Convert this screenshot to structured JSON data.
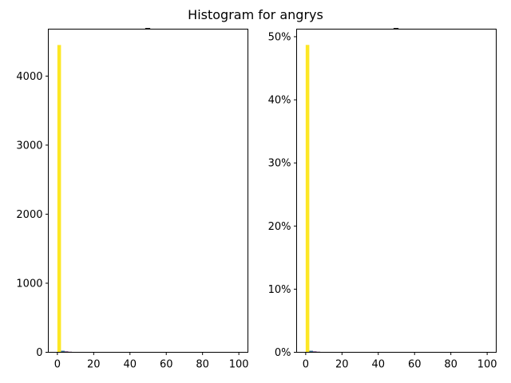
{
  "figure": {
    "suptitle": "Histogram for angrys"
  },
  "chart_data": [
    {
      "type": "bar",
      "title": "_",
      "xlabel": "",
      "ylabel": "",
      "xlim": [
        -5,
        105
      ],
      "ylim": [
        0,
        4680
      ],
      "xticks": [
        0,
        20,
        40,
        60,
        80,
        100
      ],
      "xtick_labels": [
        "0",
        "20",
        "40",
        "60",
        "80",
        "100"
      ],
      "yticks": [
        0,
        1000,
        2000,
        3000,
        4000
      ],
      "ytick_labels": [
        "0",
        "1000",
        "2000",
        "3000",
        "4000"
      ],
      "grid": false,
      "bins": [
        {
          "x0": 0,
          "x1": 2,
          "value": 4450,
          "color": "#fde725"
        },
        {
          "x0": 2,
          "x1": 4,
          "value": 22,
          "color": "#31688e"
        },
        {
          "x0": 4,
          "x1": 6,
          "value": 12,
          "color": "#440154"
        },
        {
          "x0": 6,
          "x1": 8,
          "value": 8,
          "color": "#440154"
        }
      ]
    },
    {
      "type": "bar",
      "title": "_",
      "xlabel": "",
      "ylabel": "",
      "xlim": [
        -5,
        105
      ],
      "ylim": [
        0,
        0.512
      ],
      "xticks": [
        0,
        20,
        40,
        60,
        80,
        100
      ],
      "xtick_labels": [
        "0",
        "20",
        "40",
        "60",
        "80",
        "100"
      ],
      "yticks": [
        0,
        0.1,
        0.2,
        0.3,
        0.4,
        0.5
      ],
      "ytick_labels": [
        "0%",
        "10%",
        "20%",
        "30%",
        "40%",
        "50%"
      ],
      "grid": false,
      "bins": [
        {
          "x0": 0,
          "x1": 2,
          "value": 0.487,
          "color": "#fde725"
        },
        {
          "x0": 2,
          "x1": 4,
          "value": 0.0024,
          "color": "#31688e"
        },
        {
          "x0": 4,
          "x1": 6,
          "value": 0.0013,
          "color": "#440154"
        },
        {
          "x0": 6,
          "x1": 8,
          "value": 0.0009,
          "color": "#440154"
        }
      ]
    }
  ]
}
